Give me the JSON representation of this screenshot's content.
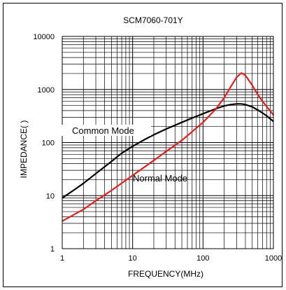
{
  "chart_data": {
    "type": "line",
    "title": "SCM7060-701Y",
    "xlabel": "FREQUENCY(MHz)",
    "ylabel": "IMPEDANCE(  )",
    "x_scale": "log",
    "y_scale": "log",
    "xlim": [
      1,
      1000
    ],
    "ylim": [
      1,
      10000
    ],
    "grid": true,
    "x_ticks": [
      "1",
      "10",
      "100",
      "1000"
    ],
    "y_ticks": [
      "1",
      "10",
      "100",
      "1000",
      "10000"
    ],
    "series": [
      {
        "name": "Common Mode",
        "color": "#000000",
        "x": [
          1,
          1.5,
          2,
          3,
          5,
          7,
          10,
          15,
          20,
          30,
          50,
          70,
          100,
          150,
          200,
          250,
          300,
          350,
          400,
          500,
          600,
          700,
          800,
          1000
        ],
        "y": [
          9,
          13,
          17,
          26,
          44,
          63,
          85,
          115,
          140,
          180,
          240,
          290,
          350,
          430,
          490,
          520,
          535,
          535,
          520,
          470,
          410,
          360,
          320,
          250
        ]
      },
      {
        "name": "Normal Mode",
        "color": "#e02020",
        "x": [
          1,
          2,
          3,
          5,
          10,
          20,
          30,
          50,
          70,
          100,
          150,
          200,
          250,
          300,
          350,
          400,
          500,
          600,
          700,
          800,
          1000
        ],
        "y": [
          3.3,
          5.5,
          8,
          12.5,
          24,
          46,
          68,
          110,
          160,
          240,
          420,
          700,
          1150,
          1700,
          2050,
          1850,
          1200,
          800,
          600,
          480,
          330
        ]
      }
    ],
    "annotations": [
      {
        "text": "Common Mode",
        "series": "Common Mode"
      },
      {
        "text": "Normal Mode",
        "series": "Normal Mode"
      }
    ]
  }
}
